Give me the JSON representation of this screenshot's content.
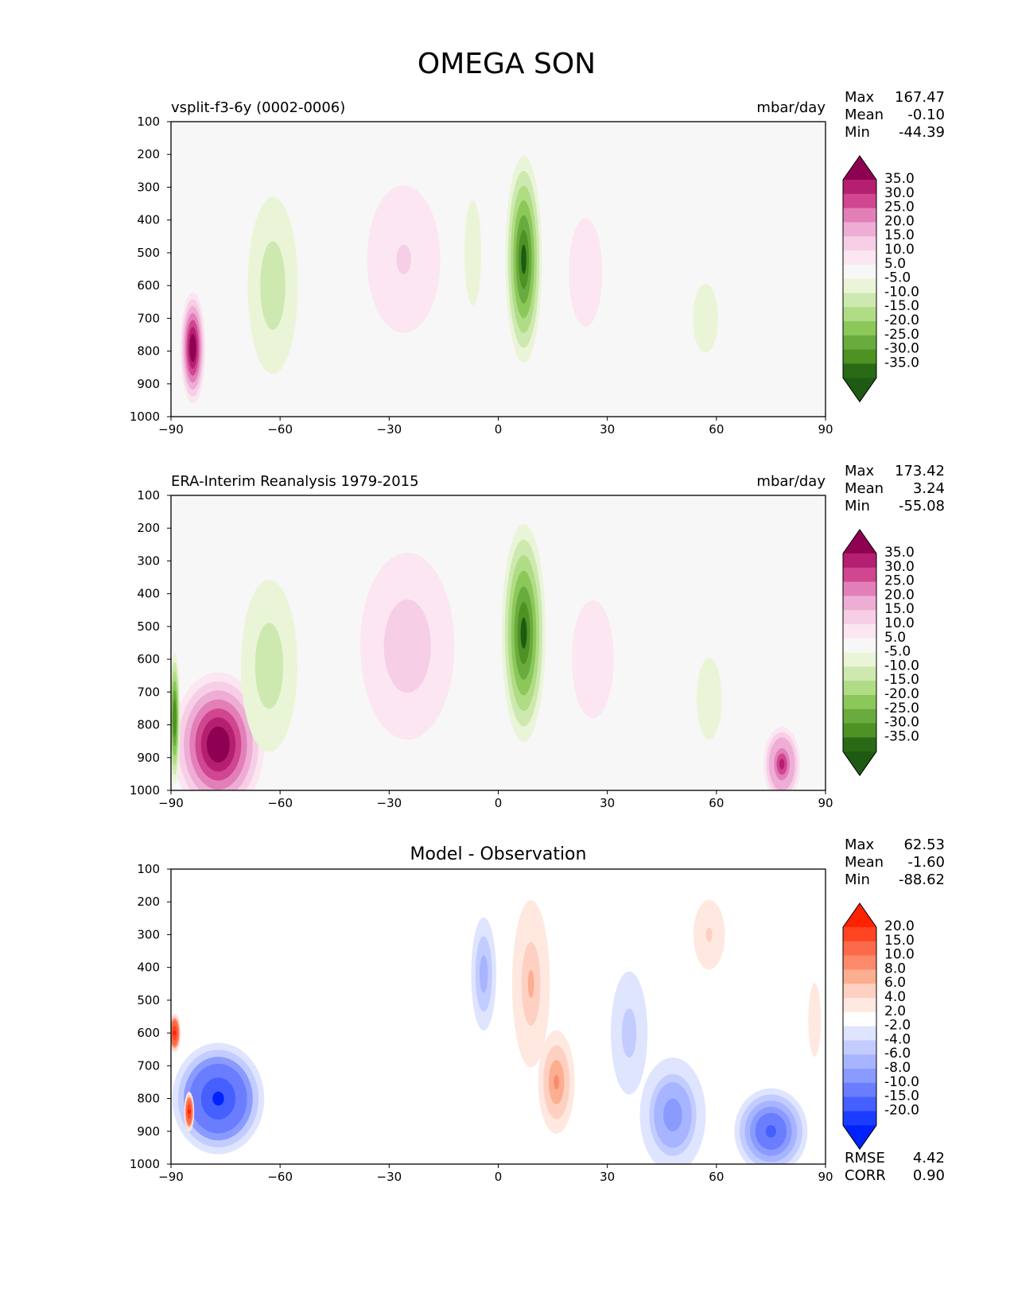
{
  "figure": {
    "title": "OMEGA SON"
  },
  "chart_data": [
    {
      "type": "heatmap",
      "title": "vsplit-f3-6y (0002-0006)",
      "units": "mbar/day",
      "x": {
        "range": [
          -90,
          90
        ],
        "ticks": [
          -90,
          -60,
          -30,
          0,
          30,
          60,
          90
        ],
        "tick_labels": [
          "−90",
          "−60",
          "−30",
          "0",
          "30",
          "60",
          "90"
        ]
      },
      "y": {
        "range": [
          1000,
          100
        ],
        "ticks": [
          100,
          200,
          300,
          400,
          500,
          600,
          700,
          800,
          900,
          1000
        ],
        "tick_labels": [
          "100",
          "200",
          "300",
          "400",
          "500",
          "600",
          "700",
          "800",
          "900",
          "1000"
        ]
      },
      "stats": [
        {
          "label": "Max",
          "value": "167.47"
        },
        {
          "label": "Mean",
          "value": "-0.10"
        },
        {
          "label": "Min",
          "value": "-44.39"
        }
      ],
      "colorbar": {
        "labels": [
          "35.0",
          "30.0",
          "25.0",
          "20.0",
          "15.0",
          "10.0",
          "5.0",
          "-5.0",
          "-10.0",
          "-15.0",
          "-20.0",
          "-25.0",
          "-30.0",
          "-35.0"
        ],
        "colors": [
          "#8e0152",
          "#b51f71",
          "#d0468f",
          "#e27fb8",
          "#eeadd4",
          "#f6cfe6",
          "#fbe6f1",
          "#f7f7f7",
          "#eaf5d8",
          "#cde9b0",
          "#b0dc86",
          "#8cc75a",
          "#6aab3f",
          "#4d9222",
          "#2a6a16",
          "#1e5a14"
        ]
      },
      "features": [
        {
          "lat": -84,
          "p": 790,
          "dlat": 3,
          "dp": 170,
          "value": 40
        },
        {
          "lat": -62,
          "p": 600,
          "dlat": 8,
          "dp": 360,
          "value": -14
        },
        {
          "lat": -26,
          "p": 520,
          "dlat": 14,
          "dp": 360,
          "value": 10
        },
        {
          "lat": -7,
          "p": 500,
          "dlat": 4,
          "dp": 320,
          "value": -10
        },
        {
          "lat": 7,
          "p": 520,
          "dlat": 5,
          "dp": 360,
          "value": -38
        },
        {
          "lat": 24,
          "p": 560,
          "dlat": 8,
          "dp": 330,
          "value": 8
        },
        {
          "lat": 57,
          "p": 700,
          "dlat": 8,
          "dp": 280,
          "value": -7
        }
      ],
      "missing": [
        {
          "lat_from": -90,
          "lat_to": -52,
          "p_from": 870,
          "p_to": 1000
        }
      ]
    },
    {
      "type": "heatmap",
      "title": "ERA-Interim Reanalysis 1979-2015",
      "units": "mbar/day",
      "x": {
        "range": [
          -90,
          90
        ],
        "ticks": [
          -90,
          -60,
          -30,
          0,
          30,
          60,
          90
        ],
        "tick_labels": [
          "−90",
          "−60",
          "−30",
          "0",
          "30",
          "60",
          "90"
        ]
      },
      "y": {
        "range": [
          1000,
          100
        ],
        "ticks": [
          100,
          200,
          300,
          400,
          500,
          600,
          700,
          800,
          900,
          1000
        ],
        "tick_labels": [
          "100",
          "200",
          "300",
          "400",
          "500",
          "600",
          "700",
          "800",
          "900",
          "1000"
        ]
      },
      "stats": [
        {
          "label": "Max",
          "value": "173.42"
        },
        {
          "label": "Mean",
          "value": "3.24"
        },
        {
          "label": "Min",
          "value": "-55.08"
        }
      ],
      "colorbar": {
        "labels": [
          "35.0",
          "30.0",
          "25.0",
          "20.0",
          "15.0",
          "10.0",
          "5.0",
          "-5.0",
          "-10.0",
          "-15.0",
          "-20.0",
          "-25.0",
          "-30.0",
          "-35.0"
        ],
        "colors": [
          "#8e0152",
          "#b51f71",
          "#d0468f",
          "#e27fb8",
          "#eeadd4",
          "#f6cfe6",
          "#fbe6f1",
          "#f7f7f7",
          "#eaf5d8",
          "#cde9b0",
          "#b0dc86",
          "#8cc75a",
          "#6aab3f",
          "#4d9222",
          "#2a6a16",
          "#1e5a14"
        ]
      },
      "features": [
        {
          "lat": -77,
          "p": 860,
          "dlat": 11,
          "dp": 220,
          "value": 40
        },
        {
          "lat": -89,
          "p": 780,
          "dlat": 1.5,
          "dp": 230,
          "value": -35
        },
        {
          "lat": -63,
          "p": 620,
          "dlat": 9,
          "dp": 350,
          "value": -15
        },
        {
          "lat": -25,
          "p": 560,
          "dlat": 15,
          "dp": 380,
          "value": 14
        },
        {
          "lat": 7,
          "p": 520,
          "dlat": 6,
          "dp": 380,
          "value": -38
        },
        {
          "lat": 26,
          "p": 600,
          "dlat": 10,
          "dp": 360,
          "value": 9
        },
        {
          "lat": 58,
          "p": 720,
          "dlat": 6,
          "dp": 250,
          "value": -10
        },
        {
          "lat": 78,
          "p": 920,
          "dlat": 5,
          "dp": 130,
          "value": 30
        }
      ],
      "missing": []
    },
    {
      "type": "heatmap",
      "title": "Model - Observation",
      "x": {
        "range": [
          -90,
          90
        ],
        "ticks": [
          -90,
          -60,
          -30,
          0,
          30,
          60,
          90
        ],
        "tick_labels": [
          "−90",
          "−60",
          "−30",
          "0",
          "30",
          "60",
          "90"
        ]
      },
      "y": {
        "range": [
          1000,
          100
        ],
        "ticks": [
          100,
          200,
          300,
          400,
          500,
          600,
          700,
          800,
          900,
          1000
        ],
        "tick_labels": [
          "100",
          "200",
          "300",
          "400",
          "500",
          "600",
          "700",
          "800",
          "900",
          "1000"
        ]
      },
      "stats": [
        {
          "label": "Max",
          "value": "62.53"
        },
        {
          "label": "Mean",
          "value": "-1.60"
        },
        {
          "label": "Min",
          "value": "-88.62"
        }
      ],
      "extra_stats": [
        {
          "label": "RMSE",
          "value": "4.42"
        },
        {
          "label": "CORR",
          "value": "0.90"
        }
      ],
      "colorbar": {
        "labels": [
          "20.0",
          "15.0",
          "10.0",
          "8.0",
          "6.0",
          "4.0",
          "2.0",
          "-2.0",
          "-4.0",
          "-6.0",
          "-8.0",
          "-10.0",
          "-15.0",
          "-20.0"
        ],
        "colors": [
          "#ff2200",
          "#ff4422",
          "#fb6a4a",
          "#fc8a6a",
          "#fcae91",
          "#fdd0c2",
          "#fee8e0",
          "#ffffff",
          "#dfe4ff",
          "#c3ccff",
          "#a7b4ff",
          "#8a9bff",
          "#6a7dff",
          "#4560ff",
          "#1c3cff",
          "#0022ff"
        ]
      },
      "features": [
        {
          "lat": -77,
          "p": 800,
          "dlat": 11,
          "dp": 170,
          "value": -22
        },
        {
          "lat": -89,
          "p": 600,
          "dlat": 1.5,
          "dp": 60,
          "value": 22
        },
        {
          "lat": -85,
          "p": 840,
          "dlat": 1.2,
          "dp": 60,
          "value": 22
        },
        {
          "lat": -4,
          "p": 420,
          "dlat": 4,
          "dp": 230,
          "value": -8
        },
        {
          "lat": 9,
          "p": 450,
          "dlat": 6,
          "dp": 340,
          "value": 6
        },
        {
          "lat": 16,
          "p": 750,
          "dlat": 5,
          "dp": 180,
          "value": 9
        },
        {
          "lat": 36,
          "p": 600,
          "dlat": 7,
          "dp": 300,
          "value": -5
        },
        {
          "lat": 48,
          "p": 850,
          "dlat": 9,
          "dp": 200,
          "value": -10
        },
        {
          "lat": 75,
          "p": 900,
          "dlat": 10,
          "dp": 150,
          "value": -16
        },
        {
          "lat": 58,
          "p": 300,
          "dlat": 6,
          "dp": 170,
          "value": 4
        },
        {
          "lat": 87,
          "p": 560,
          "dlat": 4,
          "dp": 300,
          "value": 3
        }
      ],
      "missing": [
        {
          "lat_from": -90,
          "lat_to": -53,
          "p_from": 870,
          "p_to": 1000
        }
      ]
    }
  ]
}
